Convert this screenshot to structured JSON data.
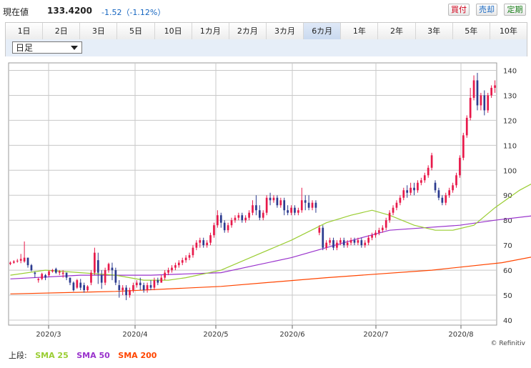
{
  "quote": {
    "label": "現在値",
    "price": "133.4200",
    "change": "-1.52（-1.12%）"
  },
  "buttons": {
    "buy": "買付",
    "sell": "売却",
    "margin": "定期"
  },
  "periods": [
    "1日",
    "2日",
    "3日",
    "5日",
    "10日",
    "1カ月",
    "2カ月",
    "3カ月",
    "6カ月",
    "1年",
    "2年",
    "3年",
    "5年",
    "10年"
  ],
  "active_period": "6カ月",
  "candle_interval": "日足",
  "legend": {
    "prefix": "上段:",
    "items": [
      {
        "name": "SMA 25",
        "color": "#9acd32"
      },
      {
        "name": "SMA 50",
        "color": "#9932cc"
      },
      {
        "name": "SMA 200",
        "color": "#ff4500"
      }
    ]
  },
  "credit": "© Refinitiv",
  "colors": {
    "up": "#e8194a",
    "down": "#2b3a8f",
    "grid": "#c8c8c8"
  },
  "chart_data": {
    "type": "candlestick",
    "x_ticks": [
      "2020/3",
      "2020/4",
      "2020/5",
      "2020/6",
      "2020/7",
      "2020/8"
    ],
    "y_ticks": [
      40,
      50,
      60,
      70,
      80,
      90,
      100,
      110,
      120,
      130,
      140
    ],
    "ylim": [
      38,
      143
    ],
    "candles": [
      [
        62.5,
        63.5,
        63,
        62
      ],
      [
        63,
        64,
        63.5,
        62.6
      ],
      [
        63.5,
        64.5,
        63.8,
        63
      ],
      [
        63.8,
        66.5,
        64.5,
        62.8
      ],
      [
        63.5,
        71.5,
        65,
        63
      ],
      [
        65,
        65,
        62,
        61
      ],
      [
        62,
        62.5,
        60,
        59.5
      ],
      [
        59,
        59.5,
        58.5,
        57
      ],
      [
        56,
        57,
        56.5,
        55
      ],
      [
        56.5,
        59,
        58.5,
        56
      ],
      [
        58,
        58.5,
        57,
        56
      ],
      [
        58,
        60,
        59.5,
        57.5
      ],
      [
        59.5,
        60.5,
        60,
        59
      ],
      [
        60.5,
        61,
        59,
        58.5
      ],
      [
        59,
        60,
        59.5,
        58
      ],
      [
        58.5,
        60,
        59,
        57
      ],
      [
        59,
        59,
        57,
        56
      ],
      [
        57,
        57,
        55,
        54
      ],
      [
        55,
        55.5,
        52,
        51.5
      ],
      [
        53,
        56.5,
        56,
        52.5
      ],
      [
        55,
        56.5,
        53,
        52
      ],
      [
        54,
        55,
        52,
        51
      ],
      [
        52,
        54,
        53.5,
        51.5
      ],
      [
        55,
        60,
        59,
        54
      ],
      [
        59,
        69,
        67,
        58
      ],
      [
        64,
        67,
        59,
        54.5
      ],
      [
        58,
        60,
        55,
        52.5
      ],
      [
        55,
        61,
        60,
        54
      ],
      [
        60,
        63,
        62.5,
        59
      ],
      [
        61,
        63,
        60,
        56
      ],
      [
        60,
        61,
        55,
        54
      ],
      [
        54,
        56,
        52,
        49
      ],
      [
        52,
        54,
        53,
        50
      ],
      [
        53,
        54,
        50,
        48
      ],
      [
        50,
        53,
        52,
        49
      ],
      [
        52,
        55,
        54,
        51
      ],
      [
        54,
        56,
        55,
        53
      ],
      [
        55,
        57,
        54,
        52
      ],
      [
        54,
        55,
        52,
        51
      ],
      [
        52,
        55,
        54,
        51
      ],
      [
        54,
        56,
        53,
        52
      ],
      [
        53,
        57,
        56,
        52
      ],
      [
        56,
        57,
        55,
        54
      ],
      [
        55,
        58,
        57,
        55
      ],
      [
        57,
        60,
        59,
        56
      ],
      [
        59,
        61,
        60,
        58
      ],
      [
        60,
        62,
        61,
        59
      ],
      [
        61,
        63,
        62,
        60
      ],
      [
        62,
        64,
        63,
        61
      ],
      [
        63,
        65,
        64,
        62
      ],
      [
        64,
        66,
        65,
        63
      ],
      [
        65,
        67,
        66,
        64
      ],
      [
        66,
        70,
        69,
        65
      ],
      [
        69,
        72,
        71,
        68
      ],
      [
        71,
        73,
        72,
        69
      ],
      [
        72,
        73,
        70,
        69
      ],
      [
        70,
        72,
        71,
        69
      ],
      [
        71,
        75,
        74,
        70
      ],
      [
        74,
        79,
        78,
        73
      ],
      [
        78,
        84,
        82,
        77
      ],
      [
        82,
        83,
        79,
        77
      ],
      [
        79,
        80,
        76,
        75
      ],
      [
        76,
        79,
        78,
        75
      ],
      [
        78,
        81,
        80,
        77
      ],
      [
        80,
        82,
        81,
        79
      ],
      [
        81,
        83,
        82,
        80
      ],
      [
        82,
        83,
        80,
        79
      ],
      [
        80,
        82,
        81,
        79
      ],
      [
        81,
        84,
        83,
        80
      ],
      [
        83,
        88,
        86,
        82
      ],
      [
        86,
        90,
        84,
        82
      ],
      [
        84,
        86,
        81,
        80
      ],
      [
        81,
        84,
        83,
        80
      ],
      [
        83,
        90,
        89,
        82
      ],
      [
        89,
        91,
        88,
        86
      ],
      [
        88,
        90,
        89,
        87
      ],
      [
        89,
        90,
        86,
        85
      ],
      [
        86,
        89,
        88,
        85
      ],
      [
        88,
        89,
        84,
        82
      ],
      [
        84,
        86,
        83,
        82
      ],
      [
        83,
        86,
        85,
        82
      ],
      [
        85,
        86,
        83,
        82
      ],
      [
        83,
        85,
        84,
        82
      ],
      [
        84,
        93,
        88,
        83
      ],
      [
        88,
        90,
        87,
        84
      ],
      [
        87,
        90,
        85,
        84
      ],
      [
        85,
        88,
        87,
        84
      ],
      [
        87,
        88,
        85,
        83
      ],
      [
        75,
        78,
        77,
        74
      ],
      [
        77,
        78,
        69,
        68
      ],
      [
        69,
        72,
        71,
        68
      ],
      [
        71,
        73,
        72,
        70
      ],
      [
        72,
        73,
        69,
        68
      ],
      [
        69,
        72,
        71,
        68
      ],
      [
        71,
        73,
        72,
        70
      ],
      [
        72,
        73,
        70,
        69
      ],
      [
        70,
        72,
        71,
        69
      ],
      [
        71,
        73,
        72,
        70
      ],
      [
        72,
        73,
        71,
        70
      ],
      [
        71,
        73,
        72,
        70
      ],
      [
        72,
        73,
        70,
        69
      ],
      [
        70,
        72,
        71,
        69
      ],
      [
        71,
        74,
        73,
        70
      ],
      [
        73,
        75,
        74,
        72
      ],
      [
        74,
        76,
        75,
        73
      ],
      [
        75,
        77,
        76,
        74
      ],
      [
        76,
        78,
        77,
        75
      ],
      [
        77,
        81,
        80,
        76
      ],
      [
        80,
        84,
        83,
        79
      ],
      [
        83,
        86,
        85,
        82
      ],
      [
        85,
        88,
        87,
        84
      ],
      [
        87,
        90,
        89,
        86
      ],
      [
        89,
        93,
        92,
        88
      ],
      [
        92,
        94,
        91,
        89
      ],
      [
        91,
        95,
        93,
        90
      ],
      [
        93,
        95,
        92,
        90
      ],
      [
        92,
        96,
        95,
        91
      ],
      [
        95,
        97,
        96,
        94
      ],
      [
        96,
        99,
        98,
        95
      ],
      [
        98,
        102,
        101,
        97
      ],
      [
        101,
        107,
        106,
        100
      ],
      [
        95,
        96,
        92,
        91
      ],
      [
        92,
        93,
        89,
        88
      ],
      [
        89,
        90,
        87,
        86
      ],
      [
        87,
        91,
        90,
        86
      ],
      [
        90,
        93,
        92,
        89
      ],
      [
        92,
        95,
        94,
        91
      ],
      [
        94,
        99,
        98,
        93
      ],
      [
        98,
        106,
        105,
        97
      ],
      [
        105,
        115,
        114,
        104
      ],
      [
        114,
        122,
        121,
        113
      ],
      [
        121,
        133,
        129,
        120
      ],
      [
        129,
        138,
        136,
        128
      ],
      [
        136,
        139,
        126,
        124
      ],
      [
        126,
        131,
        130,
        124
      ],
      [
        130,
        132,
        124,
        122
      ],
      [
        124,
        131,
        130,
        123
      ],
      [
        130,
        134,
        133,
        129
      ],
      [
        133,
        136,
        134,
        131
      ]
    ],
    "sma25": [
      [
        0,
        58
      ],
      [
        10,
        60
      ],
      [
        20,
        59
      ],
      [
        30,
        58
      ],
      [
        38,
        56
      ],
      [
        45,
        56
      ],
      [
        50,
        57
      ],
      [
        60,
        60
      ],
      [
        70,
        66
      ],
      [
        80,
        72
      ],
      [
        90,
        79
      ],
      [
        97,
        82
      ],
      [
        103,
        84
      ],
      [
        108,
        82
      ],
      [
        115,
        78
      ],
      [
        121,
        76
      ],
      [
        126,
        76
      ],
      [
        132,
        78
      ],
      [
        138,
        85
      ],
      [
        145,
        92
      ],
      [
        153,
        98
      ],
      [
        160,
        108
      ],
      [
        163,
        110
      ]
    ],
    "sma50": [
      [
        0,
        56.5
      ],
      [
        20,
        58
      ],
      [
        40,
        58
      ],
      [
        60,
        59
      ],
      [
        70,
        62
      ],
      [
        80,
        65
      ],
      [
        90,
        69
      ],
      [
        100,
        73
      ],
      [
        108,
        76
      ],
      [
        118,
        77
      ],
      [
        128,
        78
      ],
      [
        138,
        80
      ],
      [
        150,
        82
      ],
      [
        158,
        88
      ],
      [
        163,
        93
      ]
    ],
    "sma200": [
      [
        0,
        50.5
      ],
      [
        30,
        51.5
      ],
      [
        60,
        53.5
      ],
      [
        90,
        57
      ],
      [
        120,
        60
      ],
      [
        140,
        63
      ],
      [
        155,
        67
      ],
      [
        163,
        70
      ]
    ]
  }
}
